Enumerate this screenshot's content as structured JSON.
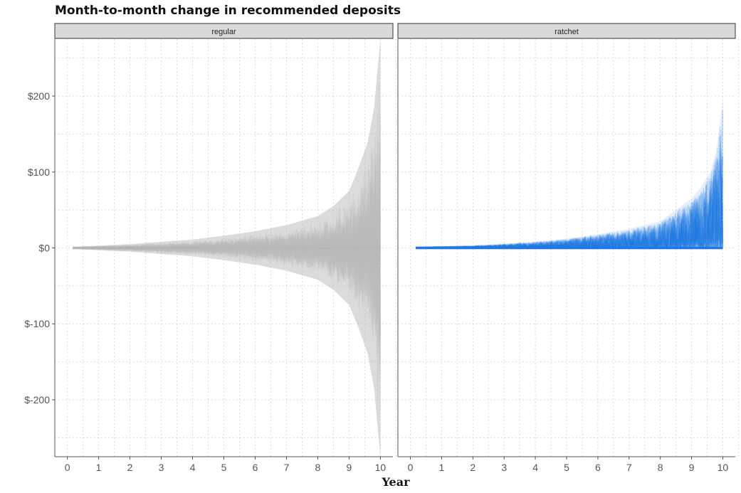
{
  "chart_data": {
    "type": "line",
    "title": "Month-to-month change in recommended deposits",
    "xlabel": "Year",
    "ylabel": "",
    "xlim": [
      -0.4,
      10.4
    ],
    "ylim": [
      -275,
      275
    ],
    "x_ticks": [
      0,
      1,
      2,
      3,
      4,
      5,
      6,
      7,
      8,
      9,
      10
    ],
    "y_ticks": [
      {
        "value": 200,
        "label": "$200"
      },
      {
        "value": 100,
        "label": "$100"
      },
      {
        "value": 0,
        "label": "$0"
      },
      {
        "value": -100,
        "label": "$-100"
      },
      {
        "value": -200,
        "label": "$-200"
      }
    ],
    "grid": "dotted",
    "facets": [
      {
        "label": "regular",
        "color": "#bdbdbd",
        "band_x": [
          0.17,
          0.5,
          1,
          2,
          3,
          4,
          5,
          6,
          7,
          8,
          8.5,
          9,
          9.3,
          9.6,
          9.8,
          9.9,
          10
        ],
        "band_max": [
          1,
          2,
          3,
          5,
          8,
          11,
          16,
          22,
          30,
          42,
          55,
          75,
          105,
          140,
          185,
          230,
          275
        ],
        "band_min": [
          -1,
          -2,
          -3,
          -5,
          -8,
          -11,
          -16,
          -22,
          -30,
          -42,
          -55,
          -75,
          -105,
          -140,
          -185,
          -230,
          -275
        ],
        "median": 0
      },
      {
        "label": "ratchet",
        "color": "#1f77e4",
        "band_x": [
          0.17,
          1,
          2,
          3,
          4,
          5,
          6,
          7,
          8,
          8.5,
          9,
          9.3,
          9.6,
          9.8,
          10
        ],
        "band_max": [
          1,
          2,
          3,
          5,
          8,
          12,
          18,
          25,
          35,
          50,
          65,
          80,
          100,
          130,
          195
        ],
        "band_min": [
          0,
          0,
          0,
          0,
          0,
          0,
          0,
          0,
          0,
          0,
          0,
          0,
          0,
          0,
          0
        ],
        "median": 0
      }
    ]
  }
}
